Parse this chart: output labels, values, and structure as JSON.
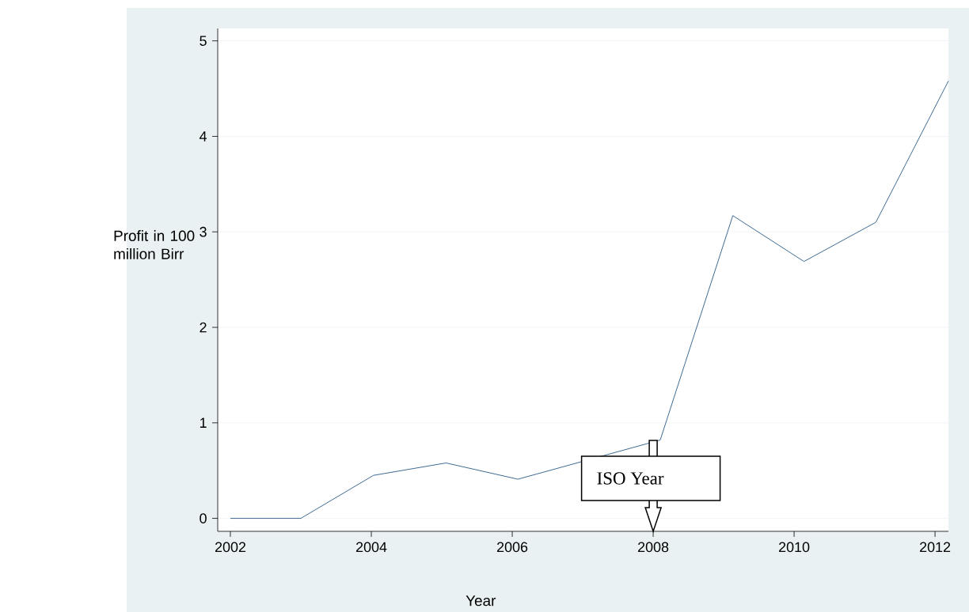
{
  "chart_data": {
    "type": "line",
    "xlabel": "Year",
    "ylabel": "Profit in 100 million Birr",
    "series": [
      {
        "color": "#3e6a94",
        "x": [
          2002,
          2003,
          2004.03,
          2005.06,
          2006.08,
          2008.1,
          2009.13,
          2010.14,
          2011.16,
          2012.19
        ],
        "values": [
          0,
          0,
          0.45,
          0.58,
          0.41,
          0.82,
          3.17,
          2.69,
          3.1,
          4.58
        ]
      }
    ],
    "xlim": [
      2001.82,
      2012.19
    ],
    "ylim": [
      -0.136,
      5.13
    ],
    "xticks": [
      2002,
      2004,
      2006,
      2008,
      2010,
      2012
    ],
    "yticks": [
      0,
      1,
      2,
      3,
      4,
      5
    ],
    "grid": "y",
    "marker": "none",
    "line_style": "solid",
    "annotations": [
      "ISO Year"
    ]
  }
}
